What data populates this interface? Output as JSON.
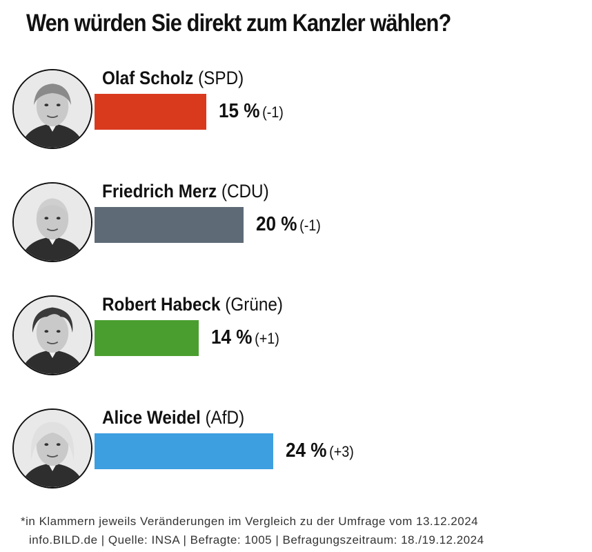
{
  "chart_data": {
    "type": "bar",
    "orientation": "horizontal",
    "title": "Wen würden Sie direkt zum Kanzler wählen?",
    "unit": "%",
    "categories": [
      "Olaf Scholz (SPD)",
      "Friedrich Merz (CDU)",
      "Robert Habeck (Grüne)",
      "Alice Weidel (AfD)"
    ],
    "values": [
      15,
      20,
      14,
      24
    ],
    "changes": [
      "(-1)",
      "(-1)",
      "(+1)",
      "(+3)"
    ],
    "xlim": [
      0,
      30
    ],
    "grid": false,
    "legend": "none"
  },
  "candidates": [
    {
      "name": "Olaf Scholz",
      "party": "(SPD)",
      "value": 15,
      "value_label": "15 %",
      "change": "(-1)",
      "color": "#d93a1e",
      "avatar": "olaf-scholz-portrait-icon"
    },
    {
      "name": "Friedrich Merz",
      "party": "(CDU)",
      "value": 20,
      "value_label": "20 %",
      "change": "(-1)",
      "color": "#5f6a77",
      "avatar": "friedrich-merz-portrait-icon"
    },
    {
      "name": "Robert Habeck",
      "party": "(Grüne)",
      "value": 14,
      "value_label": "14 %",
      "change": "(+1)",
      "color": "#4a9e2f",
      "avatar": "robert-habeck-portrait-icon"
    },
    {
      "name": "Alice Weidel",
      "party": "(AfD)",
      "value": 24,
      "value_label": "24 %",
      "change": "(+3)",
      "color": "#3d9fe0",
      "avatar": "alice-weidel-portrait-icon"
    }
  ],
  "footnote": {
    "line1": "*in Klammern jeweils Veränderungen im Vergleich zu der Umfrage vom 13.12.2024",
    "line2": "info.BILD.de | Quelle: INSA | Befragte: 1005 | Befragungszeitraum: 18./19.12.2024"
  }
}
